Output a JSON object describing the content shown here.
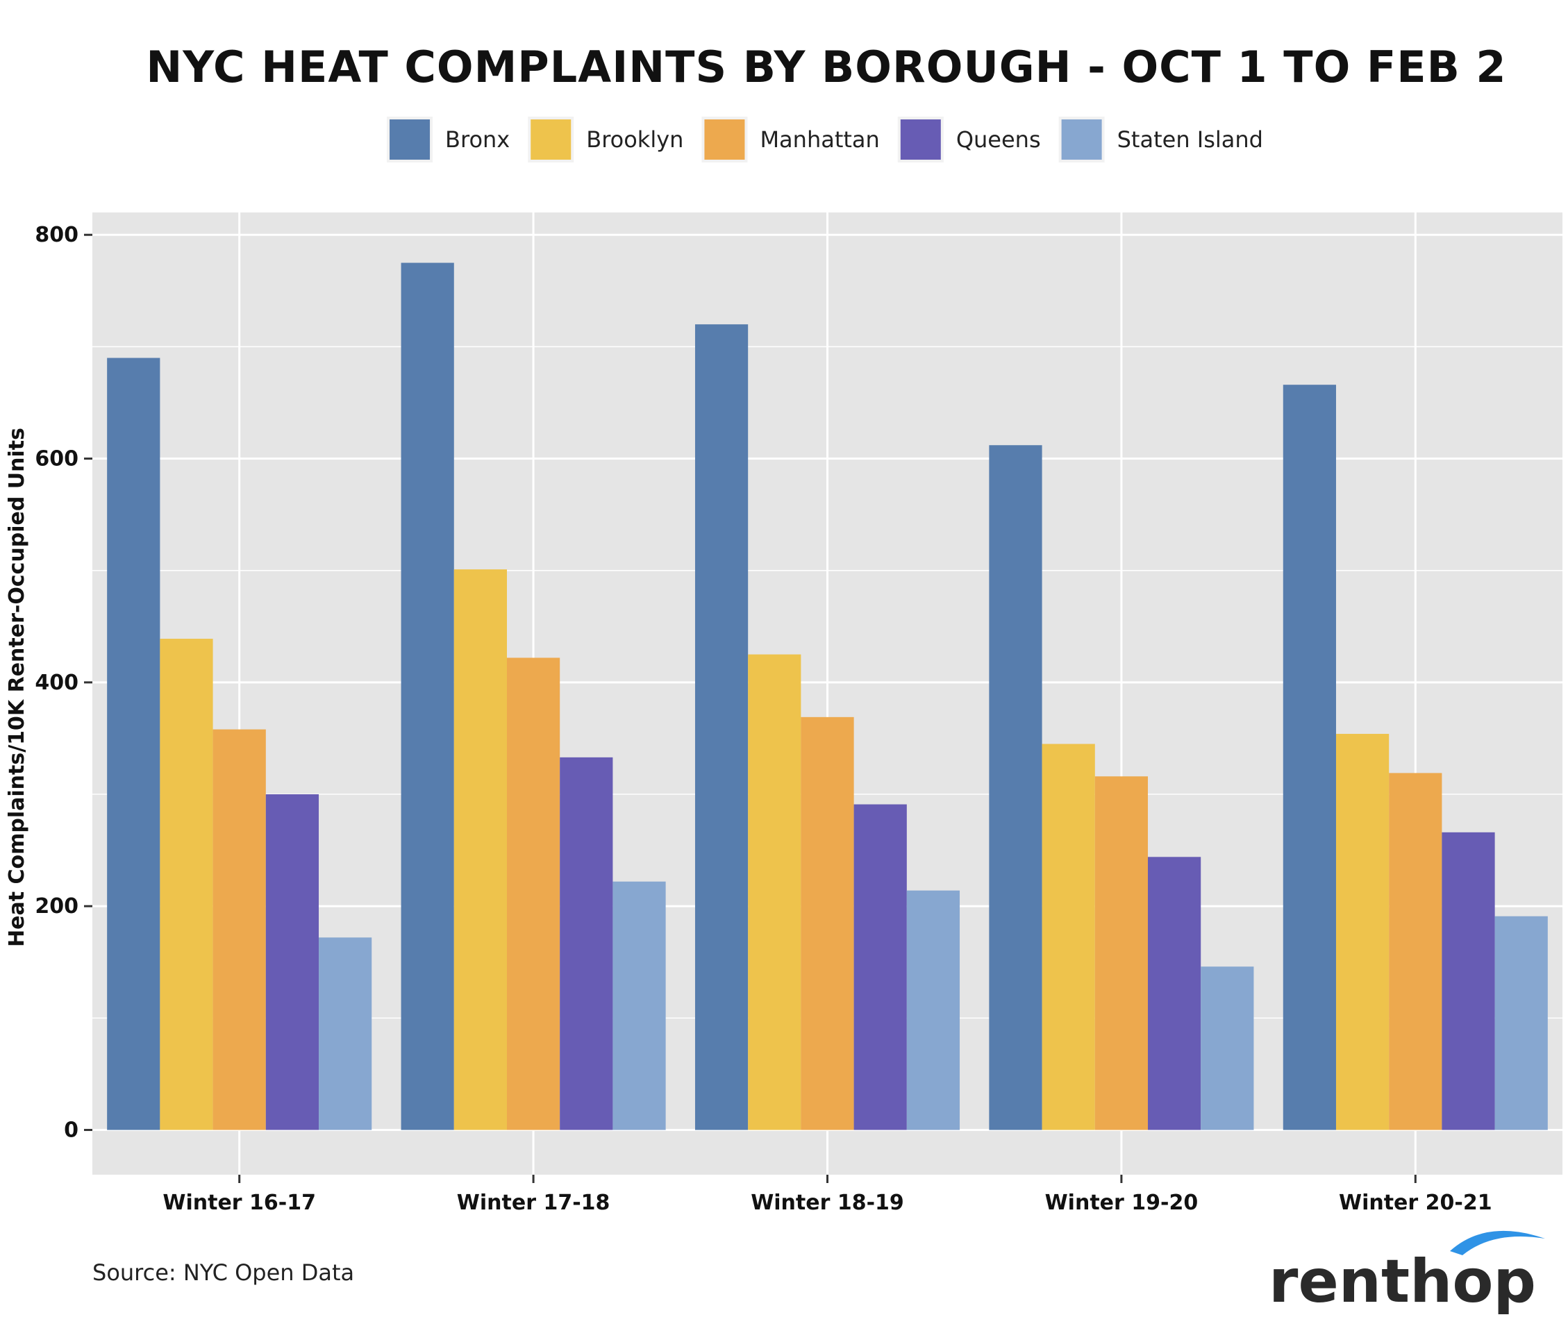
{
  "chart_data": {
    "type": "bar",
    "title": "NYC HEAT COMPLAINTS BY BOROUGH - OCT 1 TO FEB 2",
    "xlabel": "",
    "ylabel": "Heat Complaints/10K Renter-Occupied Units",
    "ylim": [
      -40,
      820
    ],
    "yticks": [
      0,
      200,
      400,
      600,
      800
    ],
    "grid": true,
    "legend_position": "top",
    "categories": [
      "Winter 16-17",
      "Winter 17-18",
      "Winter 18-19",
      "Winter 19-20",
      "Winter 20-21"
    ],
    "series": [
      {
        "name": "Bronx",
        "color": "#577DAD",
        "values": [
          690,
          775,
          720,
          612,
          666
        ]
      },
      {
        "name": "Brooklyn",
        "color": "#EEC34C",
        "values": [
          439,
          501,
          425,
          345,
          354
        ]
      },
      {
        "name": "Manhattan",
        "color": "#EDA94E",
        "values": [
          358,
          422,
          369,
          316,
          319
        ]
      },
      {
        "name": "Queens",
        "color": "#675CB4",
        "values": [
          300,
          333,
          291,
          244,
          266
        ]
      },
      {
        "name": "Staten Island",
        "color": "#87A7D0",
        "values": [
          172,
          222,
          214,
          146,
          191
        ]
      }
    ]
  },
  "footer": {
    "source": "Source: NYC Open Data",
    "logo_text": "renthop",
    "logo_icon": "renthop-arc-logo-icon"
  },
  "colors": {
    "panel_background": "#E5E5E5",
    "grid": "#FFFFFF"
  }
}
